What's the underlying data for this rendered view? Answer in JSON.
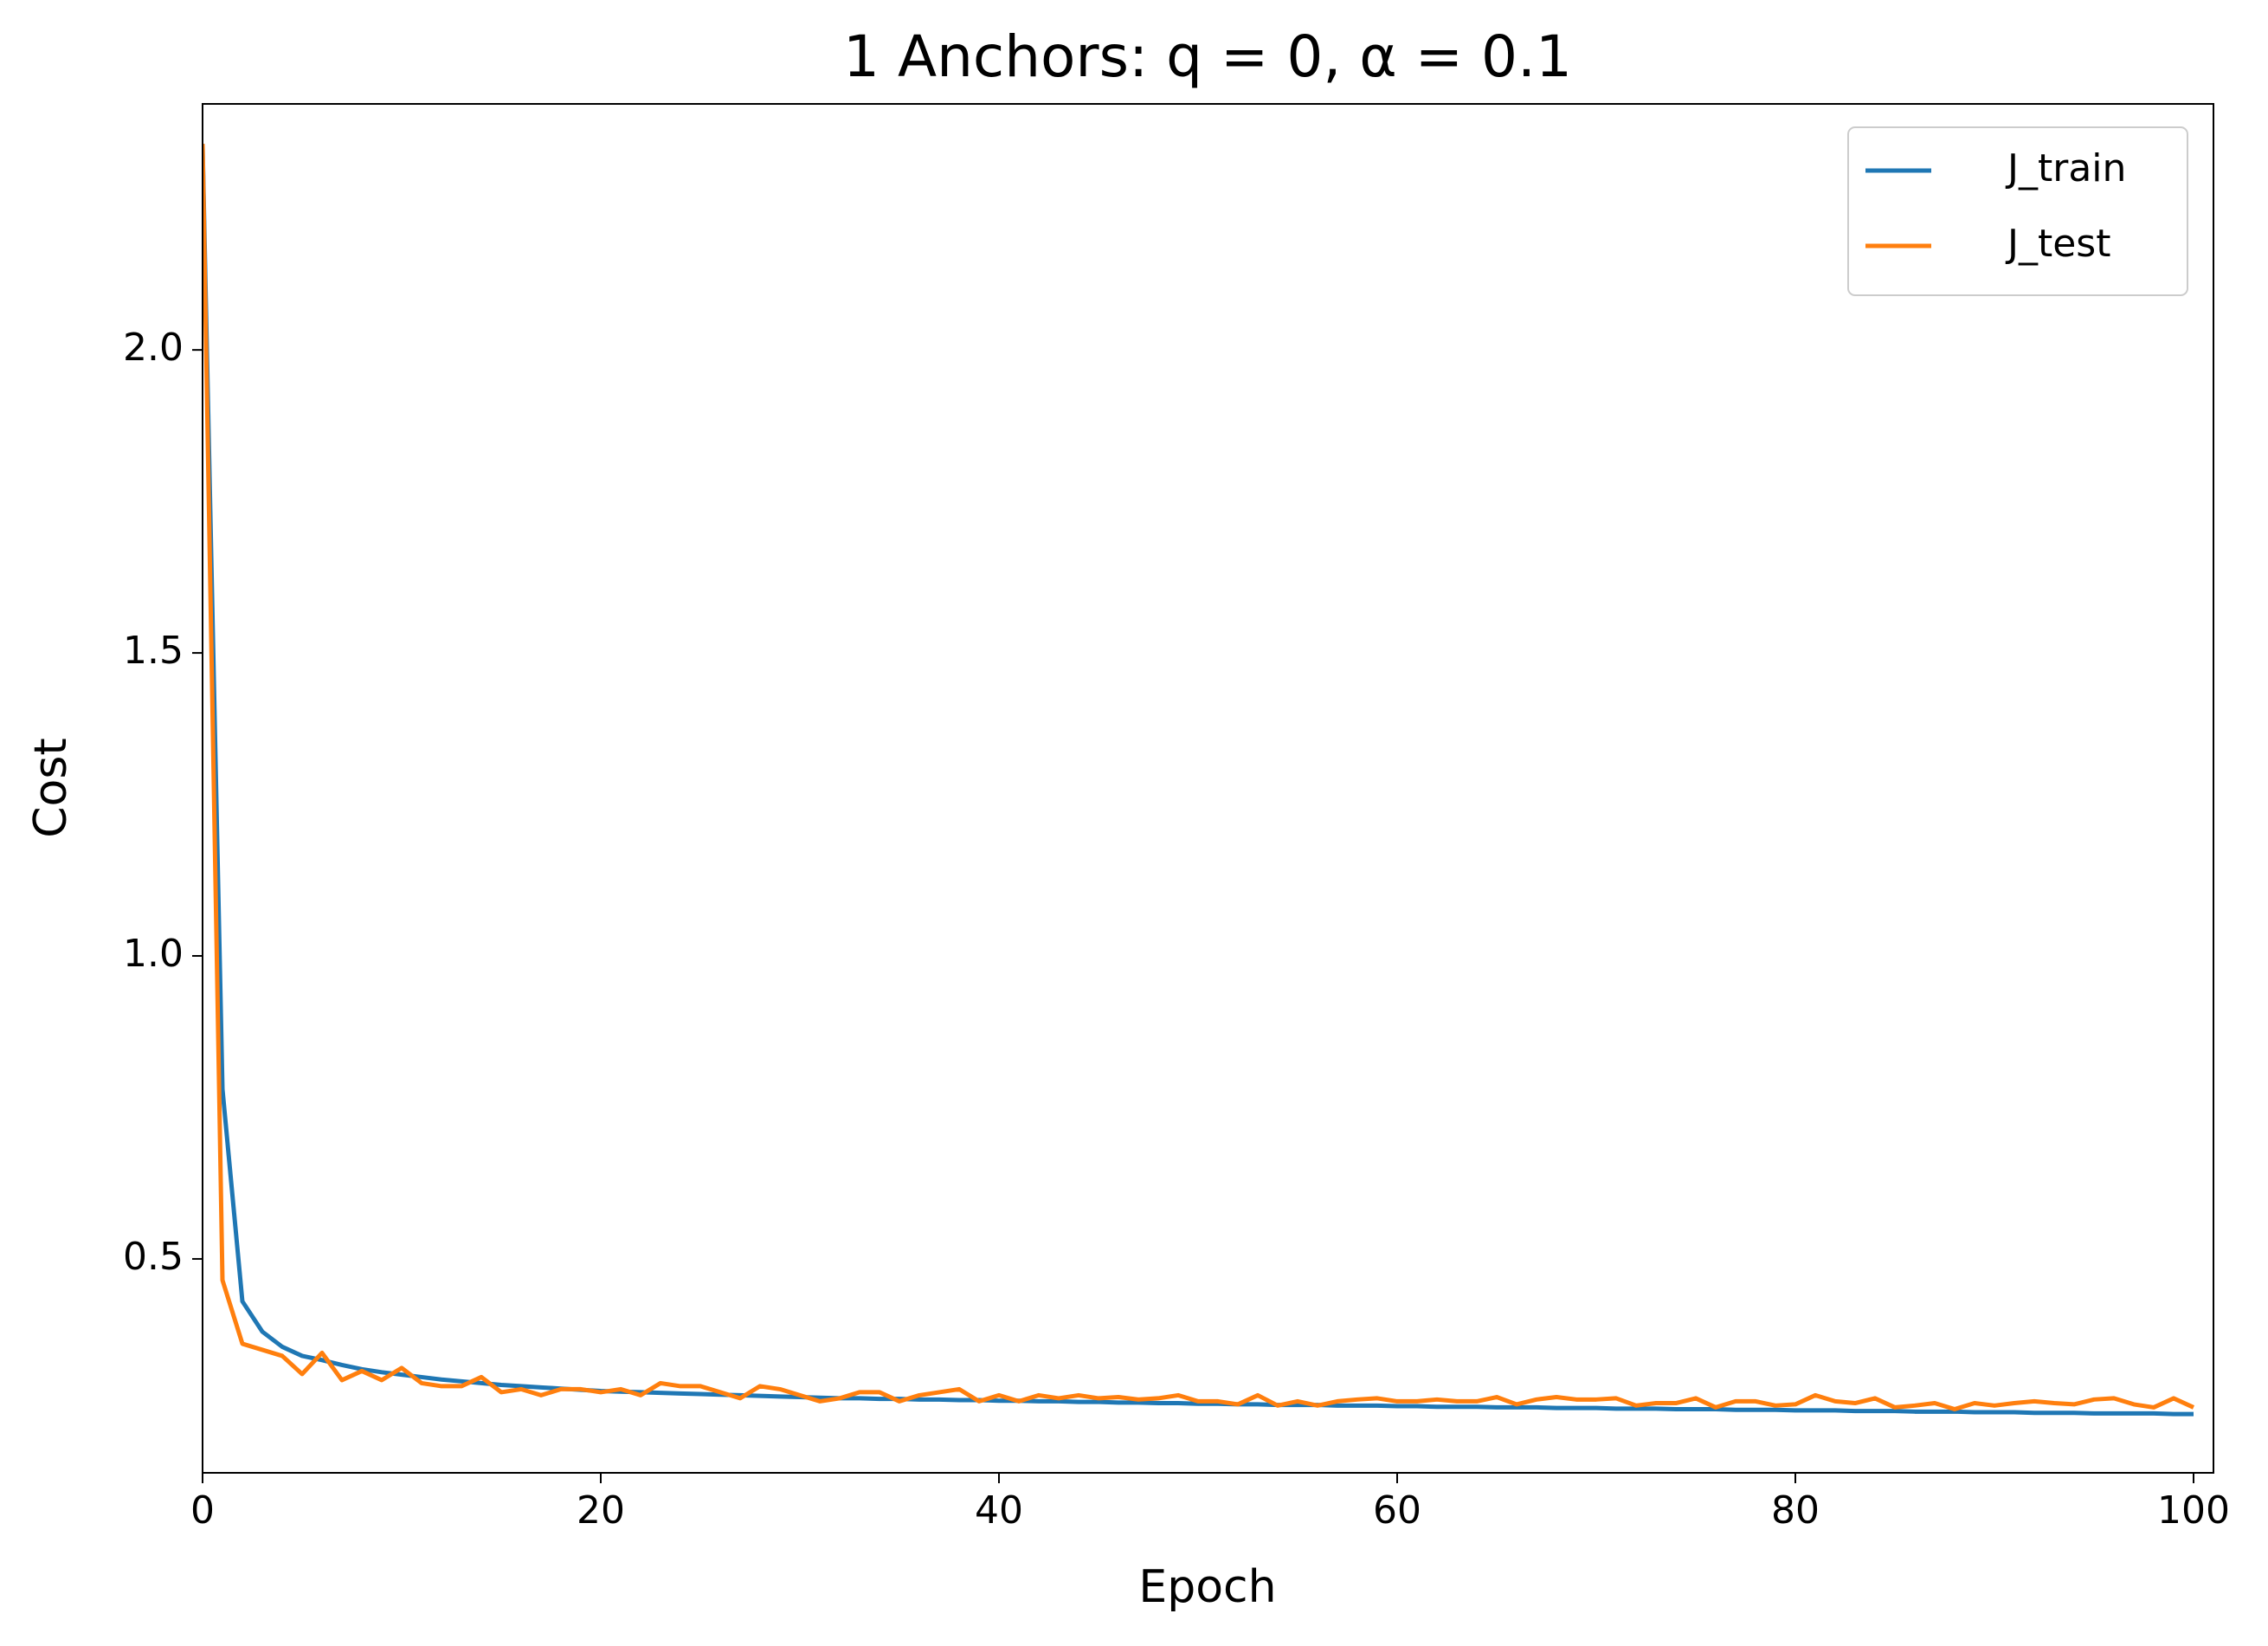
{
  "chart_data": {
    "type": "line",
    "title": "1 Anchors: q = 0, α = 0.1",
    "x_label": "Epoch",
    "y_label": "Cost",
    "x": [
      0,
      1,
      2,
      3,
      4,
      5,
      6,
      7,
      8,
      9,
      10,
      11,
      12,
      13,
      14,
      15,
      16,
      17,
      18,
      19,
      20,
      21,
      22,
      23,
      24,
      25,
      26,
      27,
      28,
      29,
      30,
      31,
      32,
      33,
      34,
      35,
      36,
      37,
      38,
      39,
      40,
      41,
      42,
      43,
      44,
      45,
      46,
      47,
      48,
      49,
      50,
      51,
      52,
      53,
      54,
      55,
      56,
      57,
      58,
      59,
      60,
      61,
      62,
      63,
      64,
      65,
      66,
      67,
      68,
      69,
      70,
      71,
      72,
      73,
      74,
      75,
      76,
      77,
      78,
      79,
      80,
      81,
      82,
      83,
      84,
      85,
      86,
      87,
      88,
      89,
      90,
      91,
      92,
      93,
      94,
      95,
      96,
      97,
      98,
      99,
      100
    ],
    "series": [
      {
        "name": "J_train",
        "color": "#1f77b4",
        "values": [
          2.34,
          0.78,
          0.43,
          0.38,
          0.355,
          0.34,
          0.333,
          0.325,
          0.318,
          0.313,
          0.309,
          0.305,
          0.301,
          0.298,
          0.295,
          0.292,
          0.29,
          0.288,
          0.286,
          0.284,
          0.282,
          0.281,
          0.28,
          0.279,
          0.278,
          0.277,
          0.276,
          0.275,
          0.274,
          0.273,
          0.272,
          0.271,
          0.27,
          0.27,
          0.269,
          0.269,
          0.268,
          0.268,
          0.267,
          0.267,
          0.266,
          0.266,
          0.265,
          0.265,
          0.264,
          0.264,
          0.263,
          0.263,
          0.262,
          0.262,
          0.261,
          0.261,
          0.26,
          0.26,
          0.259,
          0.259,
          0.259,
          0.258,
          0.258,
          0.258,
          0.257,
          0.257,
          0.256,
          0.256,
          0.256,
          0.255,
          0.255,
          0.255,
          0.254,
          0.254,
          0.254,
          0.253,
          0.253,
          0.253,
          0.252,
          0.252,
          0.252,
          0.251,
          0.251,
          0.251,
          0.25,
          0.25,
          0.25,
          0.249,
          0.249,
          0.249,
          0.248,
          0.248,
          0.248,
          0.247,
          0.247,
          0.247,
          0.246,
          0.246,
          0.246,
          0.245,
          0.245,
          0.245,
          0.245,
          0.244,
          0.244
        ]
      },
      {
        "name": "J_test",
        "color": "#ff7f0e",
        "values": [
          2.34,
          0.465,
          0.36,
          0.35,
          0.34,
          0.31,
          0.345,
          0.3,
          0.315,
          0.3,
          0.32,
          0.295,
          0.29,
          0.29,
          0.305,
          0.28,
          0.285,
          0.275,
          0.285,
          0.285,
          0.28,
          0.285,
          0.275,
          0.295,
          0.29,
          0.29,
          0.28,
          0.27,
          0.29,
          0.285,
          0.275,
          0.265,
          0.27,
          0.28,
          0.28,
          0.265,
          0.275,
          0.28,
          0.285,
          0.265,
          0.275,
          0.265,
          0.275,
          0.27,
          0.275,
          0.27,
          0.272,
          0.268,
          0.27,
          0.275,
          0.265,
          0.265,
          0.26,
          0.275,
          0.258,
          0.265,
          0.258,
          0.265,
          0.268,
          0.27,
          0.265,
          0.265,
          0.268,
          0.265,
          0.265,
          0.272,
          0.26,
          0.268,
          0.272,
          0.268,
          0.268,
          0.27,
          0.258,
          0.262,
          0.262,
          0.27,
          0.255,
          0.265,
          0.265,
          0.258,
          0.26,
          0.275,
          0.265,
          0.262,
          0.27,
          0.255,
          0.258,
          0.262,
          0.252,
          0.262,
          0.258,
          0.262,
          0.265,
          0.262,
          0.26,
          0.268,
          0.27,
          0.26,
          0.255,
          0.27,
          0.255
        ]
      }
    ],
    "xlim": [
      0,
      101
    ],
    "ylim": [
      0.147,
      2.406
    ],
    "xticks": [
      0,
      20,
      40,
      60,
      80,
      100
    ],
    "yticks": [
      0.5,
      {
        "value": 1,
        "label": "1.0"
      },
      1.5,
      {
        "value": 2,
        "label": "2.0"
      }
    ],
    "grid": false,
    "legend": "upper right"
  }
}
